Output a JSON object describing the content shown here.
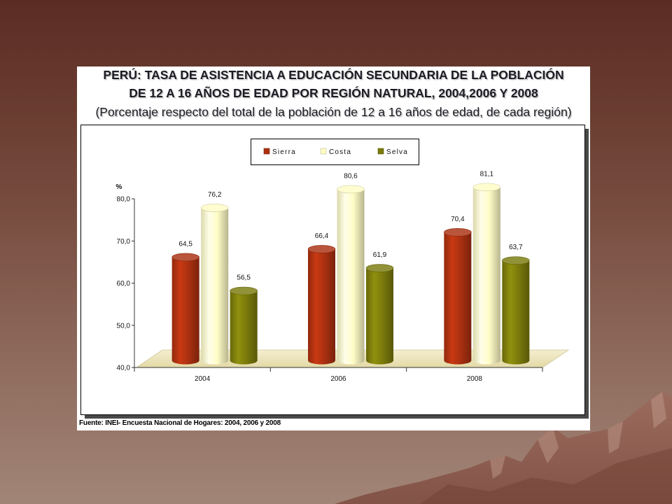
{
  "chart_data": {
    "type": "bar",
    "style": "3d-cylinder",
    "title_lines": [
      "PERÚ: TASA DE ASISTENCIA A EDUCACIÓN SECUNDARIA DE LA POBLACIÓN",
      "DE 12 A 16 AÑOS DE EDAD POR REGIÓN NATURAL, 2004,2006 Y 2008"
    ],
    "subtitle": "(Porcentaje respecto del total de la población de 12 a 16 años de edad, de cada región)",
    "xlabel": "",
    "ylabel": "%",
    "categories": [
      "2004",
      "2006",
      "2008"
    ],
    "series": [
      {
        "name": "Sierra",
        "values": [
          64.5,
          66.4,
          70.4
        ],
        "labels": [
          "64,5",
          "66,4",
          "70,4"
        ],
        "color": "#aa3010"
      },
      {
        "name": "Costa",
        "values": [
          76.2,
          80.6,
          81.1
        ],
        "labels": [
          "76,2",
          "80,6",
          "81,1"
        ],
        "color": "#fffcc6"
      },
      {
        "name": "Selva",
        "values": [
          56.5,
          61.9,
          63.7
        ],
        "labels": [
          "56,5",
          "61,9",
          "63,7"
        ],
        "color": "#7a7a0c"
      }
    ],
    "ylim": [
      40,
      80
    ],
    "yticks": [
      40,
      50,
      60,
      70,
      80
    ],
    "ytick_labels": [
      "40,0",
      "50,0",
      "60,0",
      "70,0",
      "80,0"
    ],
    "grid": false,
    "legend": "top-center"
  },
  "source": "Fuente: INEI- Encuesta Nacional de Hogares: 2004, 2006 y 2008"
}
